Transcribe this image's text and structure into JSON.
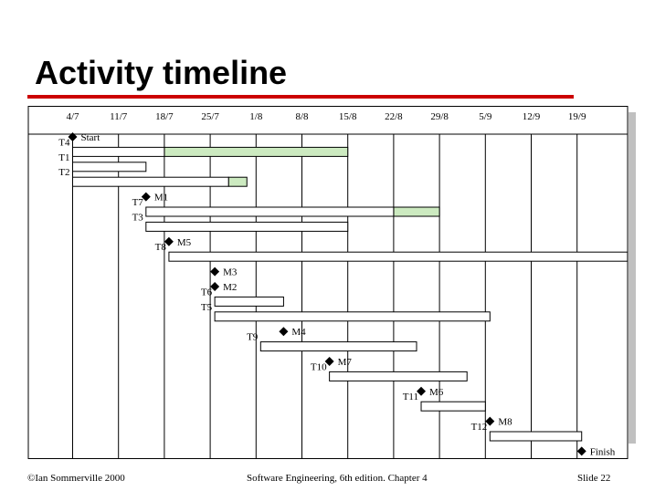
{
  "slide": {
    "title": "Activity timeline"
  },
  "chart_data": {
    "type": "gantt",
    "dates": [
      "4/7",
      "11/7",
      "18/7",
      "25/7",
      "1/8",
      "8/8",
      "15/8",
      "22/8",
      "29/8",
      "5/9",
      "12/9",
      "19/9"
    ],
    "activities": [
      {
        "label": "T4",
        "start_week": 0,
        "duration_weeks": 2,
        "slack_end_week": 6
      },
      {
        "label": "T1",
        "start_week": 0,
        "duration_weeks": 1.6,
        "slack_end_week": 1.6
      },
      {
        "label": "T2",
        "start_week": 0,
        "duration_weeks": 3.4,
        "slack_end_week": 3.8
      },
      {
        "label": "T7",
        "start_week": 1.6,
        "duration_weeks": 5.4,
        "slack_end_week": 8.0
      },
      {
        "label": "T3",
        "start_week": 1.6,
        "duration_weeks": 4.4,
        "slack_end_week": 4.4
      },
      {
        "label": "T8",
        "start_week": 2.1,
        "duration_weeks": 10.0,
        "slack_end_week": 12.1
      },
      {
        "label": "T6",
        "start_week": 3.1,
        "duration_weeks": 1.5,
        "slack_end_week": 4.6
      },
      {
        "label": "T5",
        "start_week": 3.1,
        "duration_weeks": 6.0,
        "slack_end_week": 9.1
      },
      {
        "label": "T9",
        "start_week": 4.1,
        "duration_weeks": 3.4,
        "slack_end_week": 4.1
      },
      {
        "label": "T10",
        "start_week": 5.6,
        "duration_weeks": 3.0,
        "slack_end_week": 8.6
      },
      {
        "label": "T11",
        "start_week": 7.6,
        "duration_weeks": 1.4,
        "slack_end_week": 9.0
      },
      {
        "label": "T12",
        "start_week": 9.1,
        "duration_weeks": 2.0,
        "slack_end_week": 11.1
      }
    ],
    "milestones": [
      {
        "label": "Start",
        "week": 0
      },
      {
        "label": "M1",
        "week": 1.6
      },
      {
        "label": "M5",
        "week": 2.1
      },
      {
        "label": "M3",
        "week": 3.1
      },
      {
        "label": "M2",
        "week": 3.1
      },
      {
        "label": "M4",
        "week": 4.6
      },
      {
        "label": "M7",
        "week": 5.6
      },
      {
        "label": "M6",
        "week": 7.6
      },
      {
        "label": "M8",
        "week": 9.1
      },
      {
        "label": "Finish",
        "week": 11.1
      }
    ],
    "timeline": [
      {
        "kind": "milestone",
        "ref": 0
      },
      {
        "kind": "activity",
        "ref": 0
      },
      {
        "kind": "activity",
        "ref": 1
      },
      {
        "kind": "activity",
        "ref": 2
      },
      {
        "kind": "milestone",
        "ref": 1
      },
      {
        "kind": "activity",
        "ref": 3
      },
      {
        "kind": "activity",
        "ref": 4
      },
      {
        "kind": "milestone",
        "ref": 2
      },
      {
        "kind": "activity",
        "ref": 5
      },
      {
        "kind": "milestone",
        "ref": 3
      },
      {
        "kind": "milestone",
        "ref": 4
      },
      {
        "kind": "activity",
        "ref": 6
      },
      {
        "kind": "activity",
        "ref": 7
      },
      {
        "kind": "milestone",
        "ref": 5
      },
      {
        "kind": "activity",
        "ref": 8
      },
      {
        "kind": "milestone",
        "ref": 6
      },
      {
        "kind": "activity",
        "ref": 9
      },
      {
        "kind": "milestone",
        "ref": 7
      },
      {
        "kind": "activity",
        "ref": 10
      },
      {
        "kind": "milestone",
        "ref": 8
      },
      {
        "kind": "activity",
        "ref": 11
      },
      {
        "kind": "milestone",
        "ref": 9
      }
    ],
    "colors": {
      "work_bar": "#ffffff",
      "slack_bar": "#cceac0",
      "bar_outline": "#000000",
      "milestone": "#000000"
    }
  },
  "footer": {
    "left": "©Ian Sommerville 2000",
    "center": "Software Engineering, 6th edition. Chapter 4",
    "right": "Slide  22"
  }
}
